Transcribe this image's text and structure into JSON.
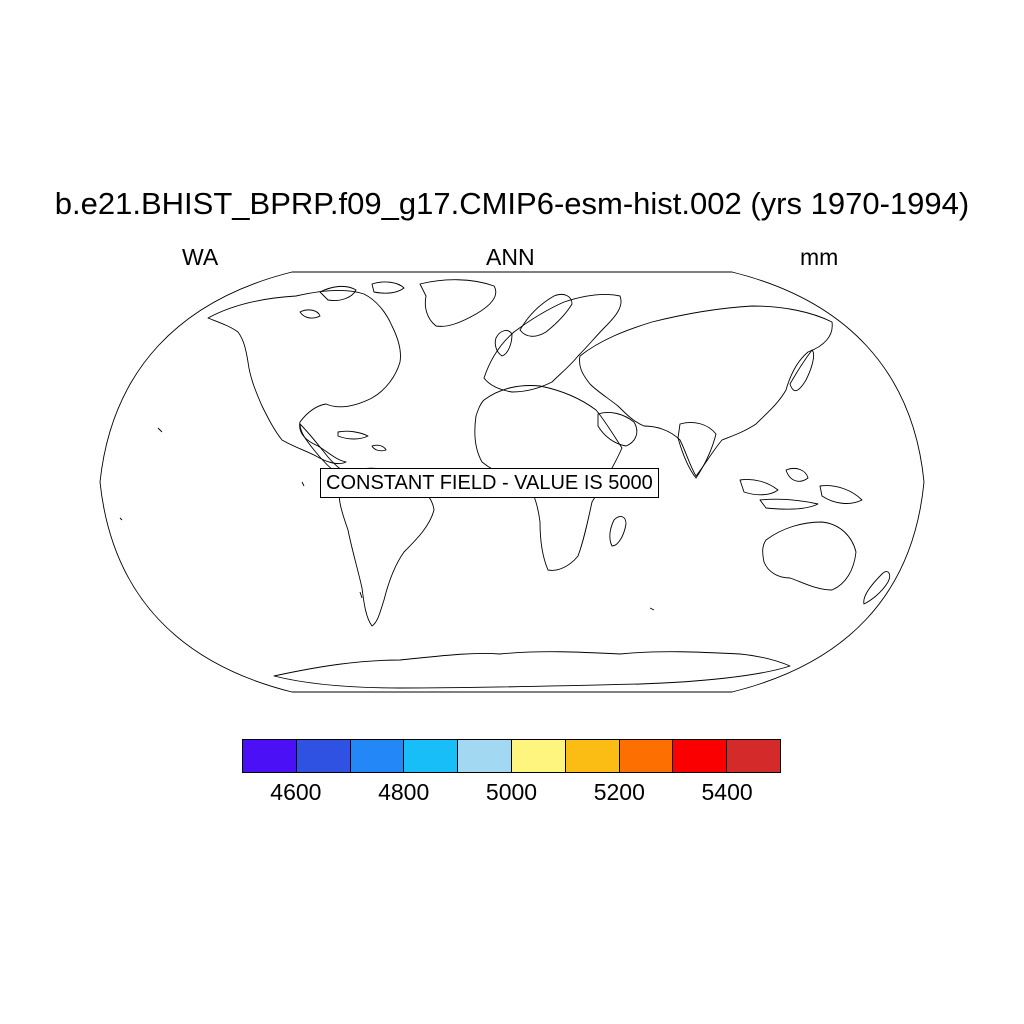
{
  "title": "b.e21.BHIST_BPRP.f09_g17.CMIP6-esm-hist.002 (yrs 1970-1994)",
  "left_label": "WA",
  "center_label": "ANN",
  "right_label": "mm",
  "map": {
    "projection": "Robinson",
    "constant_field_label": "CONSTANT FIELD - VALUE IS 5000",
    "constant_value": 5000
  },
  "colorbar": {
    "colors": [
      "#4b10f5",
      "#2f52e2",
      "#2387f7",
      "#17bef7",
      "#a3d8f2",
      "#fdf57e",
      "#fbbc14",
      "#fc6f00",
      "#fa0000",
      "#d42a2a"
    ],
    "tick_labels": [
      "4600",
      "4800",
      "5000",
      "5200",
      "5400"
    ],
    "tick_values": [
      4600,
      4800,
      5000,
      5200,
      5400
    ]
  }
}
